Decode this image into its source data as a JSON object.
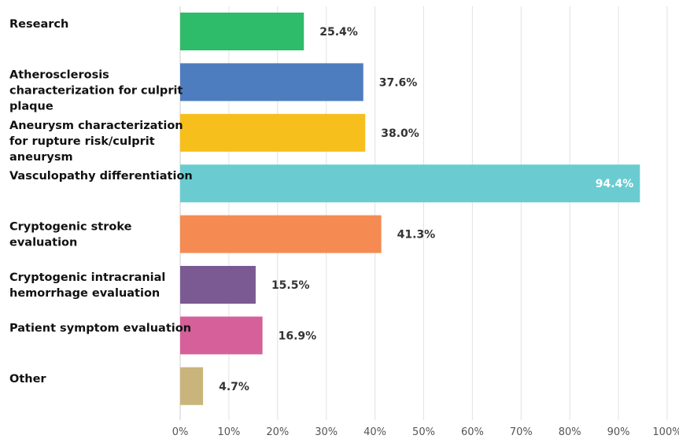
{
  "chart_data": {
    "type": "bar",
    "orientation": "horizontal",
    "categories": [
      "Research",
      "Atherosclerosis characterization for culprit plaque",
      "Aneurysm characterization for rupture risk/culprit aneurysm",
      "Vasculopathy differentiation",
      "Cryptogenic stroke evaluation",
      "Cryptogenic intracranial hemorrhage evaluation",
      "Patient symptom evaluation",
      "Other"
    ],
    "category_lines": [
      [
        "Research"
      ],
      [
        "Atherosclerosis",
        "characterization for culprit",
        "plaque"
      ],
      [
        "Aneurysm characterization",
        "for rupture risk/culprit",
        "aneurysm"
      ],
      [
        "Vasculopathy differentiation"
      ],
      [
        "Cryptogenic stroke",
        "evaluation"
      ],
      [
        "Cryptogenic intracranial",
        "hemorrhage evaluation"
      ],
      [
        "Patient symptom evaluation"
      ],
      [
        "Other"
      ]
    ],
    "values": [
      25.4,
      37.6,
      38.0,
      94.4,
      41.3,
      15.5,
      16.9,
      4.7
    ],
    "value_labels": [
      "25.4%",
      "37.6%",
      "38.0%",
      "94.4%",
      "41.3%",
      "15.5%",
      "16.9%",
      "4.7%"
    ],
    "colors": [
      "#2ebb6a",
      "#4d7dbf",
      "#f6bf1c",
      "#6accd1",
      "#f58b52",
      "#7b5a93",
      "#d5609a",
      "#c9b57b"
    ],
    "xlim": [
      0,
      100
    ],
    "xticks": [
      "0%",
      "10%",
      "20%",
      "30%",
      "40%",
      "50%",
      "60%",
      "70%",
      "80%",
      "90%",
      "100%"
    ],
    "grid": true,
    "title": "",
    "xlabel": "",
    "ylabel": ""
  }
}
